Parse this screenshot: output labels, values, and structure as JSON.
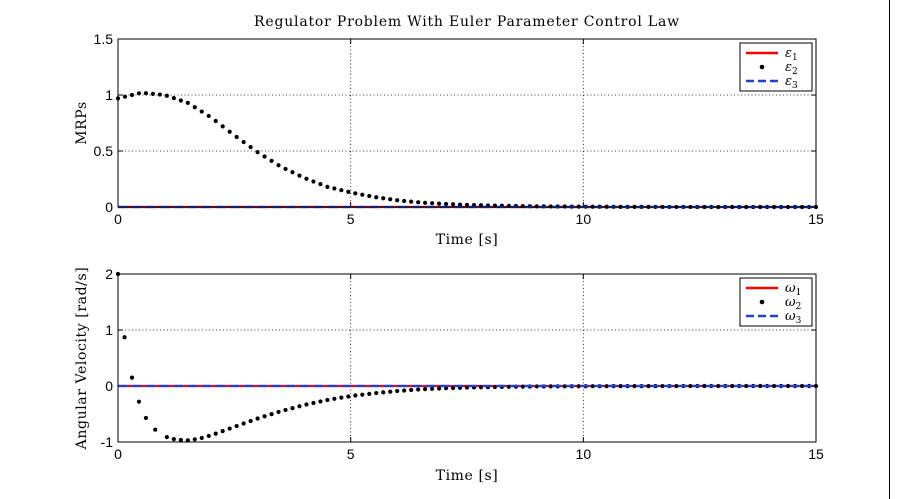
{
  "chart_data": [
    {
      "type": "line",
      "title": "Regulator Problem With Euler Parameter Control Law",
      "xlabel": "Time [s]",
      "ylabel": "MRPs",
      "xlim": [
        0,
        15
      ],
      "ylim": [
        0,
        1.5
      ],
      "xticks": [
        "0",
        "5",
        "10",
        "15"
      ],
      "yticks": [
        "0",
        "0.5",
        "1",
        "1.5"
      ],
      "grid": true,
      "legend_position": "top-right",
      "series": [
        {
          "name": "ε",
          "sub": "1",
          "style": "solid",
          "color": "#ff0000",
          "x": [
            0,
            15
          ],
          "y": [
            0,
            0
          ]
        },
        {
          "name": "ε",
          "sub": "2",
          "style": "dots",
          "color": "#000000",
          "x": [
            0,
            0.5,
            1.0,
            1.5,
            2.0,
            2.5,
            3.0,
            3.5,
            4.0,
            4.5,
            5.0,
            5.5,
            6.0,
            6.5,
            7.0,
            7.5,
            8.0,
            8.5,
            9.0,
            10.0,
            11.0,
            12.0,
            13.0,
            14.0,
            15.0
          ],
          "y": [
            0.97,
            1.02,
            1.0,
            0.93,
            0.8,
            0.64,
            0.49,
            0.36,
            0.26,
            0.18,
            0.13,
            0.09,
            0.06,
            0.04,
            0.028,
            0.019,
            0.013,
            0.009,
            0.006,
            0.003,
            0.001,
            0.0005,
            0.0002,
            0.0001,
            0.0
          ]
        },
        {
          "name": "ε",
          "sub": "3",
          "style": "dashed",
          "color": "#1f3fd6",
          "x": [
            0,
            15
          ],
          "y": [
            0,
            0
          ]
        }
      ]
    },
    {
      "type": "line",
      "title": "",
      "xlabel": "Time [s]",
      "ylabel": "Angular Velocity [rad/s]",
      "xlim": [
        0,
        15
      ],
      "ylim": [
        -1,
        2
      ],
      "xticks": [
        "0",
        "5",
        "10",
        "15"
      ],
      "yticks": [
        "-1",
        "0",
        "1",
        "2"
      ],
      "grid": true,
      "legend_position": "top-right",
      "series": [
        {
          "name": "ω",
          "sub": "1",
          "style": "solid",
          "color": "#ff0000",
          "x": [
            0,
            15
          ],
          "y": [
            0,
            0
          ]
        },
        {
          "name": "ω",
          "sub": "2",
          "style": "dots",
          "color": "#000000",
          "x": [
            0,
            0.14,
            0.3,
            0.45,
            0.6,
            0.8,
            1.0,
            1.25,
            1.5,
            1.75,
            2.0,
            2.5,
            3.0,
            3.5,
            4.0,
            4.5,
            5.0,
            5.5,
            6.0,
            6.5,
            7.0,
            7.5,
            8.0,
            8.5,
            9.0,
            10.0,
            11.0,
            12.0,
            13.0,
            14.0,
            15.0
          ],
          "y": [
            2.0,
            0.87,
            0.15,
            -0.28,
            -0.57,
            -0.78,
            -0.9,
            -0.96,
            -0.97,
            -0.94,
            -0.88,
            -0.73,
            -0.58,
            -0.45,
            -0.34,
            -0.25,
            -0.18,
            -0.13,
            -0.09,
            -0.06,
            -0.04,
            -0.028,
            -0.019,
            -0.013,
            -0.008,
            -0.004,
            -0.002,
            -0.001,
            0.0,
            0.0,
            0.0
          ]
        },
        {
          "name": "ω",
          "sub": "3",
          "style": "dashed",
          "color": "#1f3fd6",
          "x": [
            0,
            15
          ],
          "y": [
            0,
            0
          ]
        }
      ]
    }
  ]
}
